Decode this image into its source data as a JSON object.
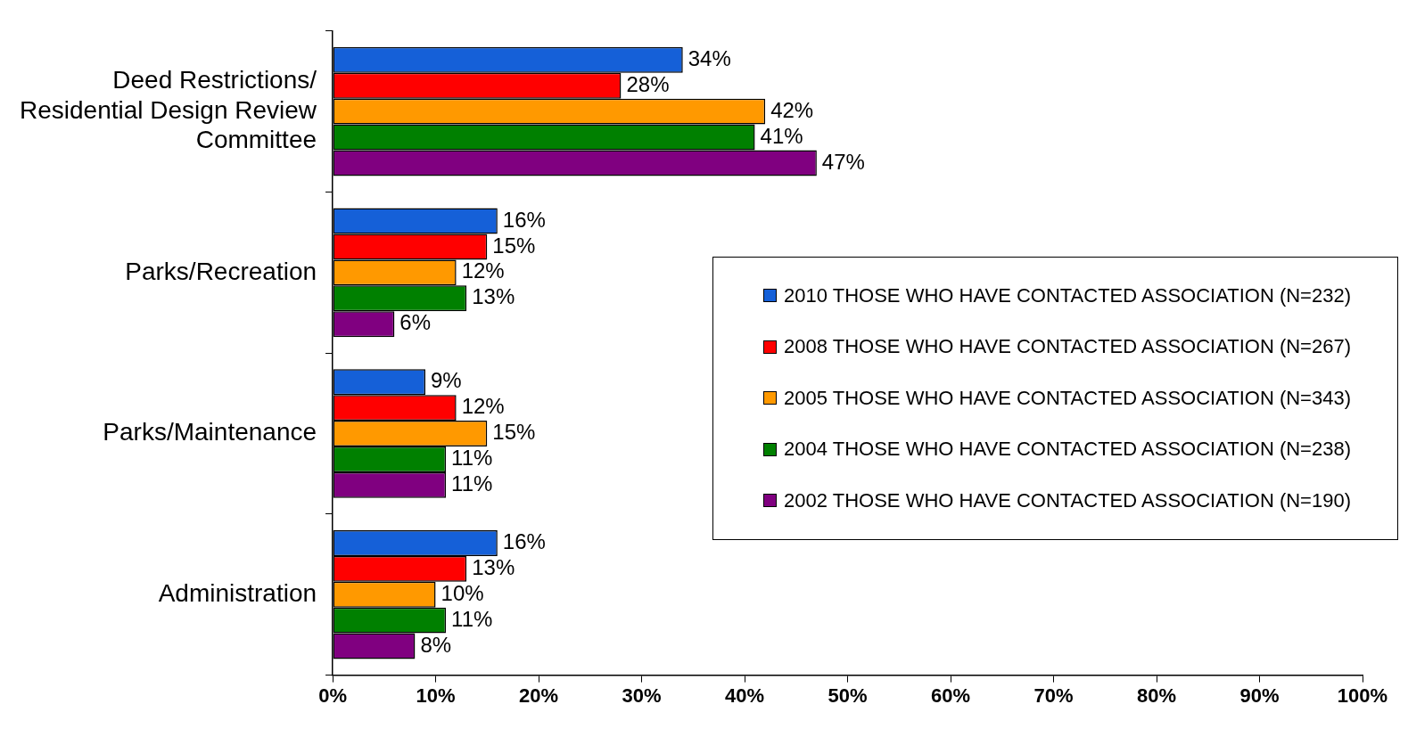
{
  "chart_data": {
    "type": "bar",
    "orientation": "horizontal",
    "categories": [
      "Deed Restrictions/ Residential Design Review Committee",
      "Parks/Recreation",
      "Parks/Maintenance",
      "Administration"
    ],
    "series": [
      {
        "name": "2010 THOSE WHO HAVE CONTACTED ASSOCIATION (N=232)",
        "color": "#1560d8",
        "values": [
          34,
          16,
          9,
          16
        ],
        "value_labels": [
          "34%",
          "16%",
          "9%",
          "16%"
        ]
      },
      {
        "name": "2008 THOSE WHO HAVE CONTACTED ASSOCIATION (N=267)",
        "color": "#ff0000",
        "values": [
          28,
          15,
          12,
          13
        ],
        "value_labels": [
          "28%",
          "15%",
          "12%",
          "13%"
        ]
      },
      {
        "name": "2005 THOSE WHO HAVE CONTACTED ASSOCIATION (N=343)",
        "color": "#ff9900",
        "values": [
          42,
          12,
          15,
          10
        ],
        "value_labels": [
          "42%",
          "12%",
          "15%",
          "10%"
        ]
      },
      {
        "name": "2004 THOSE WHO HAVE CONTACTED ASSOCIATION (N=238)",
        "color": "#008000",
        "values": [
          41,
          13,
          11,
          11
        ],
        "value_labels": [
          "41%",
          "13%",
          "11%",
          "11%"
        ]
      },
      {
        "name": "2002 THOSE WHO HAVE CONTACTED ASSOCIATION (N=190)",
        "color": "#800080",
        "values": [
          47,
          6,
          11,
          8
        ],
        "value_labels": [
          "47%",
          "6%",
          "11%",
          "8%"
        ]
      }
    ],
    "xlim": [
      0,
      100
    ],
    "xticks": [
      {
        "value": 0,
        "label": "0%"
      },
      {
        "value": 10,
        "label": "10%"
      },
      {
        "value": 20,
        "label": "20%"
      },
      {
        "value": 30,
        "label": "30%"
      },
      {
        "value": 40,
        "label": "40%"
      },
      {
        "value": 50,
        "label": "50%"
      },
      {
        "value": 60,
        "label": "60%"
      },
      {
        "value": 70,
        "label": "70%"
      },
      {
        "value": 80,
        "label": "80%"
      },
      {
        "value": 90,
        "label": "90%"
      },
      {
        "value": 100,
        "label": "100%"
      }
    ],
    "grid": false,
    "legend": "right"
  }
}
